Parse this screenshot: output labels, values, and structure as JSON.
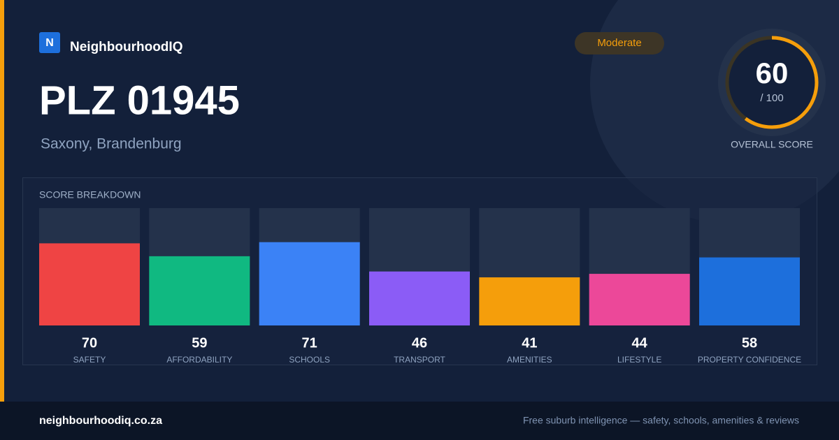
{
  "brand": {
    "logo": "N",
    "name": "NeighbourhoodIQ"
  },
  "header": {
    "title": "PLZ 01945",
    "subtitle": "Saxony, Brandenburg",
    "badge": "Moderate"
  },
  "score": {
    "value": 60,
    "max": {
      "value": 100,
      "label": "/ 100"
    },
    "label": "OVERALL SCORE",
    "color": "#f59e0b"
  },
  "chart_data": {
    "type": "bar",
    "title": "SCORE BREAKDOWN",
    "categories": [
      "SAFETY",
      "AFFORDABILITY",
      "SCHOOLS",
      "TRANSPORT",
      "AMENITIES",
      "LIFESTYLE",
      "PROPERTY CONFIDENCE"
    ],
    "values": [
      70,
      59,
      71,
      46,
      41,
      44,
      58
    ],
    "colors": [
      "#ef4444",
      "#10b981",
      "#3b82f6",
      "#8b5cf6",
      "#f59e0b",
      "#ec4899",
      "#1d6fdc"
    ],
    "ylim": [
      0,
      100
    ]
  },
  "footer": {
    "site": "neighbourhoodiq.co.za",
    "tagline": "Free suburb intelligence — safety, schools, amenities & reviews"
  }
}
